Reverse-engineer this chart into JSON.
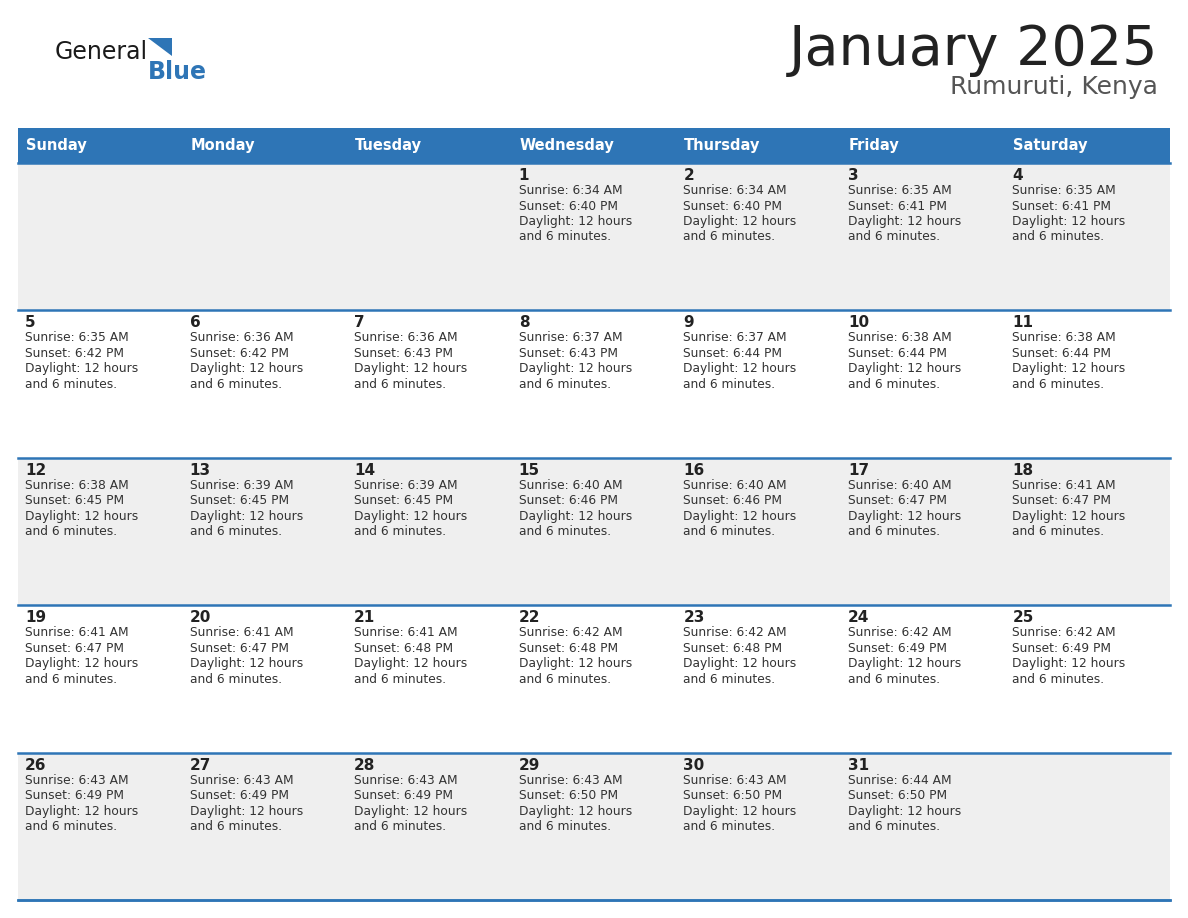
{
  "title": "January 2025",
  "subtitle": "Rumuruti, Kenya",
  "days_of_week": [
    "Sunday",
    "Monday",
    "Tuesday",
    "Wednesday",
    "Thursday",
    "Friday",
    "Saturday"
  ],
  "header_bg": "#2E75B6",
  "header_text": "#FFFFFF",
  "row_bg_odd": "#EFEFEF",
  "row_bg_even": "#FFFFFF",
  "border_color": "#2E75B6",
  "calendar_data": [
    [
      null,
      null,
      null,
      {
        "day": 1,
        "sunrise": "6:34 AM",
        "sunset": "6:40 PM",
        "daylight_line1": "12 hours",
        "daylight_line2": "and 6 minutes."
      },
      {
        "day": 2,
        "sunrise": "6:34 AM",
        "sunset": "6:40 PM",
        "daylight_line1": "12 hours",
        "daylight_line2": "and 6 minutes."
      },
      {
        "day": 3,
        "sunrise": "6:35 AM",
        "sunset": "6:41 PM",
        "daylight_line1": "12 hours",
        "daylight_line2": "and 6 minutes."
      },
      {
        "day": 4,
        "sunrise": "6:35 AM",
        "sunset": "6:41 PM",
        "daylight_line1": "12 hours",
        "daylight_line2": "and 6 minutes."
      }
    ],
    [
      {
        "day": 5,
        "sunrise": "6:35 AM",
        "sunset": "6:42 PM",
        "daylight_line1": "12 hours",
        "daylight_line2": "and 6 minutes."
      },
      {
        "day": 6,
        "sunrise": "6:36 AM",
        "sunset": "6:42 PM",
        "daylight_line1": "12 hours",
        "daylight_line2": "and 6 minutes."
      },
      {
        "day": 7,
        "sunrise": "6:36 AM",
        "sunset": "6:43 PM",
        "daylight_line1": "12 hours",
        "daylight_line2": "and 6 minutes."
      },
      {
        "day": 8,
        "sunrise": "6:37 AM",
        "sunset": "6:43 PM",
        "daylight_line1": "12 hours",
        "daylight_line2": "and 6 minutes."
      },
      {
        "day": 9,
        "sunrise": "6:37 AM",
        "sunset": "6:44 PM",
        "daylight_line1": "12 hours",
        "daylight_line2": "and 6 minutes."
      },
      {
        "day": 10,
        "sunrise": "6:38 AM",
        "sunset": "6:44 PM",
        "daylight_line1": "12 hours",
        "daylight_line2": "and 6 minutes."
      },
      {
        "day": 11,
        "sunrise": "6:38 AM",
        "sunset": "6:44 PM",
        "daylight_line1": "12 hours",
        "daylight_line2": "and 6 minutes."
      }
    ],
    [
      {
        "day": 12,
        "sunrise": "6:38 AM",
        "sunset": "6:45 PM",
        "daylight_line1": "12 hours",
        "daylight_line2": "and 6 minutes."
      },
      {
        "day": 13,
        "sunrise": "6:39 AM",
        "sunset": "6:45 PM",
        "daylight_line1": "12 hours",
        "daylight_line2": "and 6 minutes."
      },
      {
        "day": 14,
        "sunrise": "6:39 AM",
        "sunset": "6:45 PM",
        "daylight_line1": "12 hours",
        "daylight_line2": "and 6 minutes."
      },
      {
        "day": 15,
        "sunrise": "6:40 AM",
        "sunset": "6:46 PM",
        "daylight_line1": "12 hours",
        "daylight_line2": "and 6 minutes."
      },
      {
        "day": 16,
        "sunrise": "6:40 AM",
        "sunset": "6:46 PM",
        "daylight_line1": "12 hours",
        "daylight_line2": "and 6 minutes."
      },
      {
        "day": 17,
        "sunrise": "6:40 AM",
        "sunset": "6:47 PM",
        "daylight_line1": "12 hours",
        "daylight_line2": "and 6 minutes."
      },
      {
        "day": 18,
        "sunrise": "6:41 AM",
        "sunset": "6:47 PM",
        "daylight_line1": "12 hours",
        "daylight_line2": "and 6 minutes."
      }
    ],
    [
      {
        "day": 19,
        "sunrise": "6:41 AM",
        "sunset": "6:47 PM",
        "daylight_line1": "12 hours",
        "daylight_line2": "and 6 minutes."
      },
      {
        "day": 20,
        "sunrise": "6:41 AM",
        "sunset": "6:47 PM",
        "daylight_line1": "12 hours",
        "daylight_line2": "and 6 minutes."
      },
      {
        "day": 21,
        "sunrise": "6:41 AM",
        "sunset": "6:48 PM",
        "daylight_line1": "12 hours",
        "daylight_line2": "and 6 minutes."
      },
      {
        "day": 22,
        "sunrise": "6:42 AM",
        "sunset": "6:48 PM",
        "daylight_line1": "12 hours",
        "daylight_line2": "and 6 minutes."
      },
      {
        "day": 23,
        "sunrise": "6:42 AM",
        "sunset": "6:48 PM",
        "daylight_line1": "12 hours",
        "daylight_line2": "and 6 minutes."
      },
      {
        "day": 24,
        "sunrise": "6:42 AM",
        "sunset": "6:49 PM",
        "daylight_line1": "12 hours",
        "daylight_line2": "and 6 minutes."
      },
      {
        "day": 25,
        "sunrise": "6:42 AM",
        "sunset": "6:49 PM",
        "daylight_line1": "12 hours",
        "daylight_line2": "and 6 minutes."
      }
    ],
    [
      {
        "day": 26,
        "sunrise": "6:43 AM",
        "sunset": "6:49 PM",
        "daylight_line1": "12 hours",
        "daylight_line2": "and 6 minutes."
      },
      {
        "day": 27,
        "sunrise": "6:43 AM",
        "sunset": "6:49 PM",
        "daylight_line1": "12 hours",
        "daylight_line2": "and 6 minutes."
      },
      {
        "day": 28,
        "sunrise": "6:43 AM",
        "sunset": "6:49 PM",
        "daylight_line1": "12 hours",
        "daylight_line2": "and 6 minutes."
      },
      {
        "day": 29,
        "sunrise": "6:43 AM",
        "sunset": "6:50 PM",
        "daylight_line1": "12 hours",
        "daylight_line2": "and 6 minutes."
      },
      {
        "day": 30,
        "sunrise": "6:43 AM",
        "sunset": "6:50 PM",
        "daylight_line1": "12 hours",
        "daylight_line2": "and 6 minutes."
      },
      {
        "day": 31,
        "sunrise": "6:44 AM",
        "sunset": "6:50 PM",
        "daylight_line1": "12 hours",
        "daylight_line2": "and 6 minutes."
      },
      null
    ]
  ]
}
